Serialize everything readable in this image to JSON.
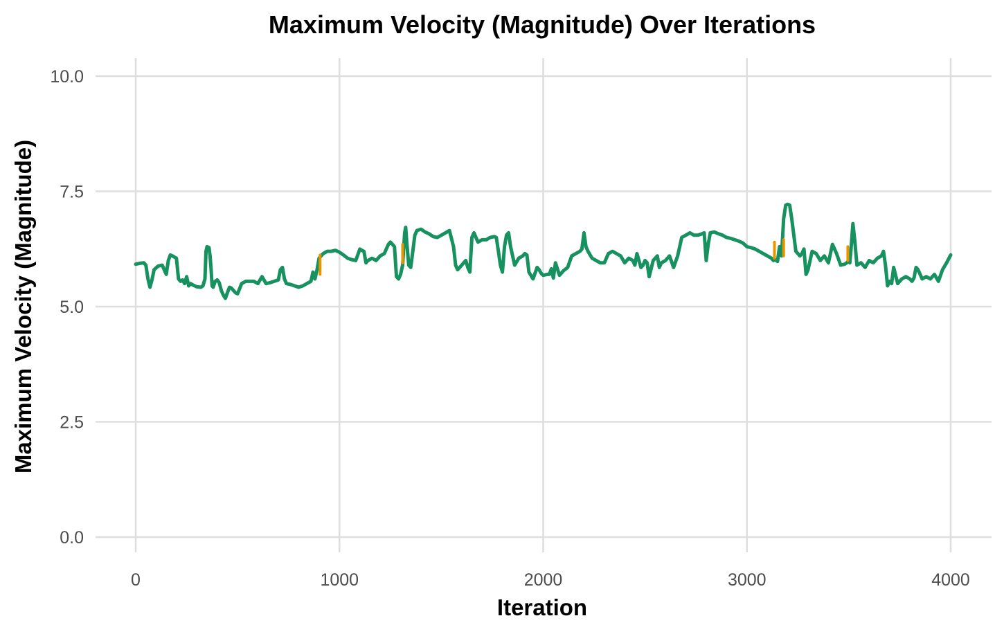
{
  "chart_data": {
    "type": "line",
    "title": "Maximum Velocity (Magnitude) Over Iterations",
    "xlabel": "Iteration",
    "ylabel": "Maximum Velocity (Magnitude)",
    "xlim": [
      0,
      4000
    ],
    "ylim": [
      0,
      10
    ],
    "x_ticks": [
      0,
      1000,
      2000,
      3000,
      4000
    ],
    "x_tick_labels": [
      "0",
      "1000",
      "2000",
      "3000",
      "4000"
    ],
    "y_ticks": [
      0,
      2.5,
      5,
      7.5,
      10
    ],
    "y_tick_labels": [
      "0.0",
      "2.5",
      "5.0",
      "7.5",
      "10.0"
    ],
    "grid": true,
    "legend": "none",
    "colors": {
      "line": "#16915f",
      "highlight": "#e69500",
      "grid": "#dedede",
      "tick_text": "#4d4d4d"
    },
    "series": [
      {
        "color": "#16915f",
        "x": [
          0,
          20,
          40,
          50,
          60,
          70,
          80,
          90,
          110,
          130,
          150,
          160,
          170,
          180,
          200,
          210,
          220,
          230,
          240,
          250,
          260,
          270,
          280,
          290,
          300,
          320,
          330,
          340,
          345,
          350,
          360,
          365,
          370,
          375,
          380,
          390,
          400,
          410,
          420,
          430,
          440,
          450,
          460,
          470,
          480,
          490,
          500,
          520,
          540,
          560,
          580,
          600,
          620,
          640,
          660,
          680,
          700,
          710,
          720,
          730,
          740,
          760,
          780,
          800,
          820,
          840,
          860,
          870,
          880,
          890,
          900,
          910,
          920,
          940,
          960,
          980,
          1000,
          1020,
          1040,
          1060,
          1080,
          1100,
          1110,
          1120,
          1130,
          1140,
          1160,
          1180,
          1200,
          1220,
          1240,
          1250,
          1260,
          1270,
          1280,
          1290,
          1300,
          1310,
          1320,
          1325,
          1330,
          1340,
          1350,
          1360,
          1370,
          1380,
          1400,
          1420,
          1440,
          1460,
          1480,
          1500,
          1520,
          1540,
          1560,
          1570,
          1580,
          1590,
          1600,
          1610,
          1620,
          1630,
          1640,
          1650,
          1660,
          1680,
          1700,
          1720,
          1740,
          1760,
          1770,
          1780,
          1790,
          1800,
          1810,
          1820,
          1830,
          1840,
          1860,
          1880,
          1900,
          1910,
          1920,
          1930,
          1950,
          1970,
          1980,
          1990,
          2000,
          2020,
          2030,
          2040,
          2050,
          2060,
          2080,
          2100,
          2120,
          2140,
          2160,
          2180,
          2190,
          2200,
          2210,
          2220,
          2240,
          2260,
          2280,
          2300,
          2320,
          2340,
          2360,
          2380,
          2400,
          2420,
          2440,
          2450,
          2460,
          2480,
          2490,
          2500,
          2510,
          2520,
          2540,
          2560,
          2570,
          2580,
          2600,
          2620,
          2640,
          2660,
          2680,
          2700,
          2720,
          2740,
          2760,
          2780,
          2790,
          2800,
          2810,
          2820,
          2840,
          2860,
          2880,
          2900,
          2920,
          2940,
          2960,
          2980,
          3000,
          3020,
          3040,
          3060,
          3080,
          3100,
          3120,
          3130,
          3140,
          3150,
          3160,
          3170,
          3180,
          3190,
          3200,
          3210,
          3220,
          3240,
          3260,
          3270,
          3280,
          3290,
          3300,
          3320,
          3340,
          3360,
          3380,
          3400,
          3420,
          3440,
          3460,
          3480,
          3490,
          3500,
          3505,
          3510,
          3520,
          3530,
          3540,
          3560,
          3580,
          3600,
          3620,
          3640,
          3660,
          3670,
          3680,
          3690,
          3700,
          3710,
          3720,
          3740,
          3760,
          3780,
          3800,
          3810,
          3820,
          3830,
          3840,
          3860,
          3880,
          3900,
          3920,
          3940,
          3960,
          3980,
          4000
        ],
        "y": [
          5.92,
          5.94,
          5.95,
          5.9,
          5.6,
          5.42,
          5.58,
          5.8,
          5.88,
          5.9,
          5.7,
          6.0,
          6.12,
          6.1,
          6.05,
          5.6,
          5.55,
          5.58,
          5.5,
          5.65,
          5.45,
          5.5,
          5.47,
          5.45,
          5.43,
          5.42,
          5.45,
          5.6,
          6.2,
          6.3,
          6.28,
          6.1,
          5.8,
          5.45,
          5.42,
          5.55,
          5.58,
          5.52,
          5.35,
          5.25,
          5.18,
          5.3,
          5.42,
          5.4,
          5.35,
          5.3,
          5.28,
          5.5,
          5.55,
          5.55,
          5.55,
          5.5,
          5.65,
          5.5,
          5.52,
          5.55,
          5.58,
          5.8,
          5.85,
          5.6,
          5.5,
          5.48,
          5.45,
          5.42,
          5.45,
          5.5,
          5.55,
          5.75,
          5.6,
          5.8,
          6.05,
          6.1,
          6.15,
          6.2,
          6.2,
          6.22,
          6.18,
          6.12,
          6.05,
          6.02,
          6.0,
          6.25,
          6.22,
          6.2,
          5.95,
          6.0,
          6.05,
          6.0,
          6.1,
          6.15,
          6.35,
          6.4,
          6.35,
          6.3,
          5.65,
          5.6,
          5.7,
          5.9,
          6.6,
          6.72,
          6.4,
          5.9,
          5.85,
          6.2,
          6.55,
          6.65,
          6.68,
          6.62,
          6.58,
          6.52,
          6.5,
          6.55,
          6.6,
          6.65,
          6.3,
          5.9,
          5.8,
          5.85,
          5.9,
          5.95,
          6.0,
          5.85,
          5.75,
          6.5,
          6.6,
          6.4,
          6.45,
          6.45,
          6.5,
          6.52,
          6.5,
          6.2,
          5.9,
          5.75,
          6.3,
          6.55,
          6.6,
          6.3,
          5.9,
          6.05,
          6.1,
          6.15,
          6.12,
          5.75,
          5.6,
          5.85,
          5.8,
          5.72,
          5.68,
          5.7,
          5.7,
          5.82,
          5.62,
          5.95,
          5.68,
          5.78,
          5.85,
          6.1,
          6.15,
          6.2,
          6.25,
          6.6,
          6.3,
          6.2,
          6.05,
          6.0,
          5.95,
          5.95,
          6.15,
          6.2,
          6.15,
          6.1,
          5.95,
          6.05,
          6.0,
          5.9,
          6.15,
          5.85,
          5.9,
          6.0,
          5.95,
          5.65,
          6.0,
          6.1,
          5.85,
          5.95,
          6.0,
          6.1,
          5.85,
          6.1,
          6.5,
          6.55,
          6.6,
          6.55,
          6.55,
          6.58,
          6.6,
          6.0,
          6.35,
          6.6,
          6.62,
          6.58,
          6.55,
          6.5,
          6.48,
          6.45,
          6.42,
          6.38,
          6.3,
          6.28,
          6.25,
          6.2,
          6.15,
          6.1,
          6.05,
          6.0,
          6.02,
          5.98,
          6.3,
          6.1,
          6.9,
          7.2,
          7.22,
          7.2,
          6.9,
          6.2,
          6.1,
          6.15,
          6.25,
          5.7,
          5.8,
          6.2,
          6.15,
          6.0,
          6.1,
          5.95,
          6.35,
          6.15,
          5.9,
          5.92,
          5.95,
          6.0,
          5.95,
          6.2,
          6.8,
          6.4,
          5.9,
          5.95,
          5.85,
          6.0,
          5.95,
          6.05,
          6.1,
          6.2,
          5.9,
          5.45,
          5.55,
          5.5,
          5.85,
          5.5,
          5.6,
          5.65,
          5.6,
          5.55,
          5.62,
          5.85,
          5.8,
          5.6,
          5.65,
          5.6,
          5.7,
          5.55,
          5.8,
          5.95,
          6.12
        ]
      },
      {
        "color": "#e69500",
        "x": [
          905,
          905
        ],
        "y": [
          5.7,
          6.12
        ]
      },
      {
        "color": "#e69500",
        "x": [
          1310,
          1310
        ],
        "y": [
          5.95,
          6.35
        ]
      },
      {
        "color": "#e69500",
        "x": [
          3135,
          3135
        ],
        "y": [
          6.05,
          6.4
        ]
      },
      {
        "color": "#e69500",
        "x": [
          3180,
          3180
        ],
        "y": [
          6.1,
          6.45
        ]
      },
      {
        "color": "#e69500",
        "x": [
          3495,
          3495
        ],
        "y": [
          6.0,
          6.3
        ]
      }
    ]
  }
}
